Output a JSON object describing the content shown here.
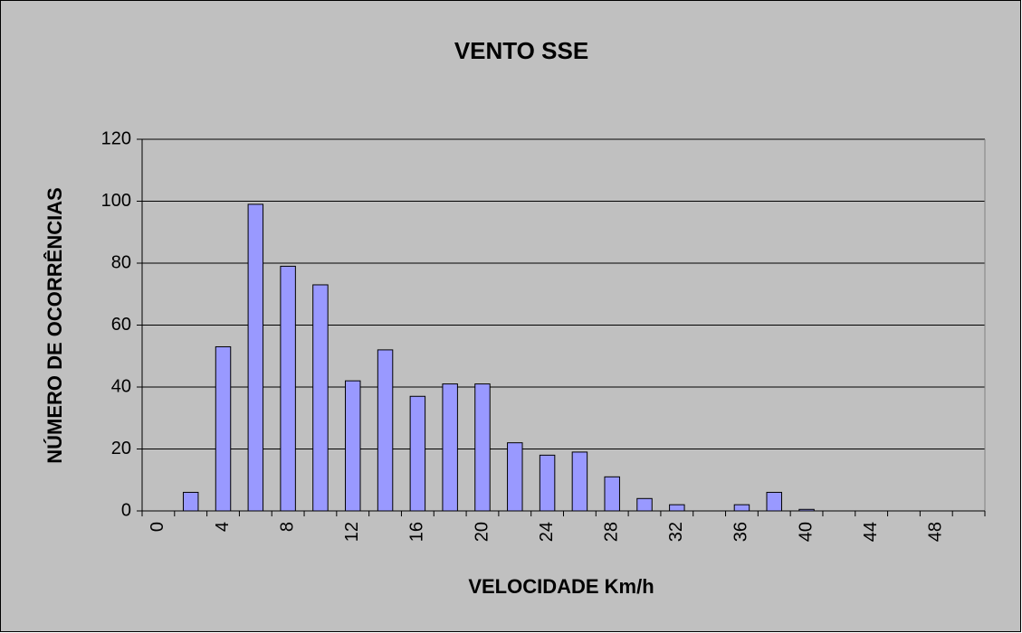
{
  "chart_data": {
    "type": "bar",
    "title": "VENTO SSE",
    "x_label": "VELOCIDADE Km/h",
    "y_label": "NÚMERO DE OCORRÊNCIAS",
    "categories": [
      "0",
      null,
      "4",
      null,
      "8",
      null,
      "12",
      null,
      "16",
      null,
      "20",
      null,
      "24",
      null,
      "28",
      null,
      "32",
      null,
      "36",
      null,
      "40",
      null,
      "44",
      null,
      "48",
      null
    ],
    "values": [
      0,
      6,
      53,
      99,
      79,
      73,
      42,
      52,
      37,
      41,
      41,
      22,
      18,
      19,
      11,
      4,
      2,
      0,
      2,
      6,
      0.5,
      0,
      0,
      0,
      0,
      0
    ],
    "color": "#9999ff",
    "ylim": [
      0,
      120
    ],
    "yticks": [
      0,
      20,
      40,
      60,
      80,
      100,
      120
    ],
    "grid": true
  }
}
